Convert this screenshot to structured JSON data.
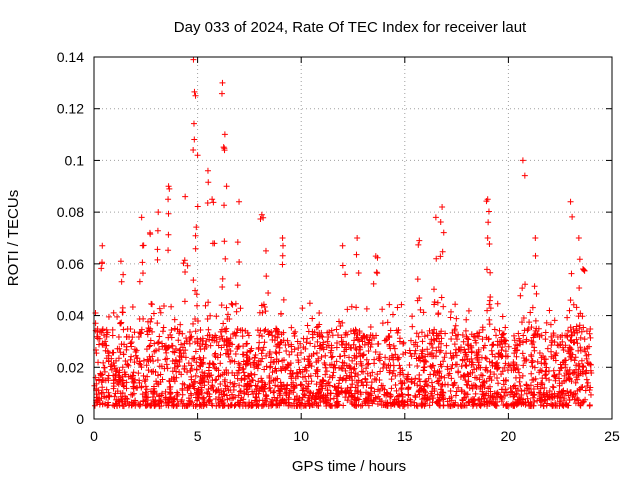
{
  "chart_data": {
    "type": "scatter",
    "title": "Day 033 of 2024, Rate Of TEC Index for receiver laut",
    "xlabel": "GPS time / hours",
    "ylabel": "ROTI / TECUs",
    "xlim": [
      0,
      25
    ],
    "ylim": [
      0,
      0.14
    ],
    "x_ticks": [
      0,
      5,
      10,
      15,
      20,
      25
    ],
    "x_tick_labels": [
      "0",
      "5",
      "10",
      "15",
      "20",
      "25"
    ],
    "y_ticks": [
      0,
      0.02,
      0.04,
      0.06,
      0.08,
      0.1,
      0.12,
      0.14
    ],
    "y_tick_labels": [
      "0",
      "0.02",
      "0.04",
      "0.06",
      "0.08",
      "0.1",
      "0.12",
      "0.14"
    ],
    "grid": true,
    "marker": "+",
    "color": "#ff0000",
    "series": [
      {
        "name": "ROTI",
        "x_range": [
          0,
          24
        ],
        "baseline_range": [
          0.005,
          0.035
        ],
        "spikes": [
          {
            "x": 0.4,
            "y": 0.067
          },
          {
            "x": 1.3,
            "y": 0.061
          },
          {
            "x": 2.3,
            "y": 0.078
          },
          {
            "x": 2.7,
            "y": 0.072
          },
          {
            "x": 3.1,
            "y": 0.08
          },
          {
            "x": 3.6,
            "y": 0.09
          },
          {
            "x": 4.4,
            "y": 0.086
          },
          {
            "x": 4.8,
            "y": 0.139
          },
          {
            "x": 4.9,
            "y": 0.125
          },
          {
            "x": 5.0,
            "y": 0.102
          },
          {
            "x": 5.5,
            "y": 0.096
          },
          {
            "x": 5.7,
            "y": 0.085
          },
          {
            "x": 6.2,
            "y": 0.13
          },
          {
            "x": 6.3,
            "y": 0.104
          },
          {
            "x": 6.4,
            "y": 0.09
          },
          {
            "x": 7.0,
            "y": 0.084
          },
          {
            "x": 8.1,
            "y": 0.079
          },
          {
            "x": 8.3,
            "y": 0.065
          },
          {
            "x": 9.1,
            "y": 0.07
          },
          {
            "x": 12.0,
            "y": 0.067
          },
          {
            "x": 12.7,
            "y": 0.07
          },
          {
            "x": 13.6,
            "y": 0.063
          },
          {
            "x": 15.7,
            "y": 0.069
          },
          {
            "x": 16.8,
            "y": 0.082
          },
          {
            "x": 16.5,
            "y": 0.078
          },
          {
            "x": 19.0,
            "y": 0.085
          },
          {
            "x": 19.0,
            "y": 0.07
          },
          {
            "x": 20.7,
            "y": 0.1
          },
          {
            "x": 21.3,
            "y": 0.07
          },
          {
            "x": 23.0,
            "y": 0.084
          },
          {
            "x": 23.4,
            "y": 0.07
          },
          {
            "x": 23.6,
            "y": 0.058
          }
        ]
      }
    ]
  }
}
